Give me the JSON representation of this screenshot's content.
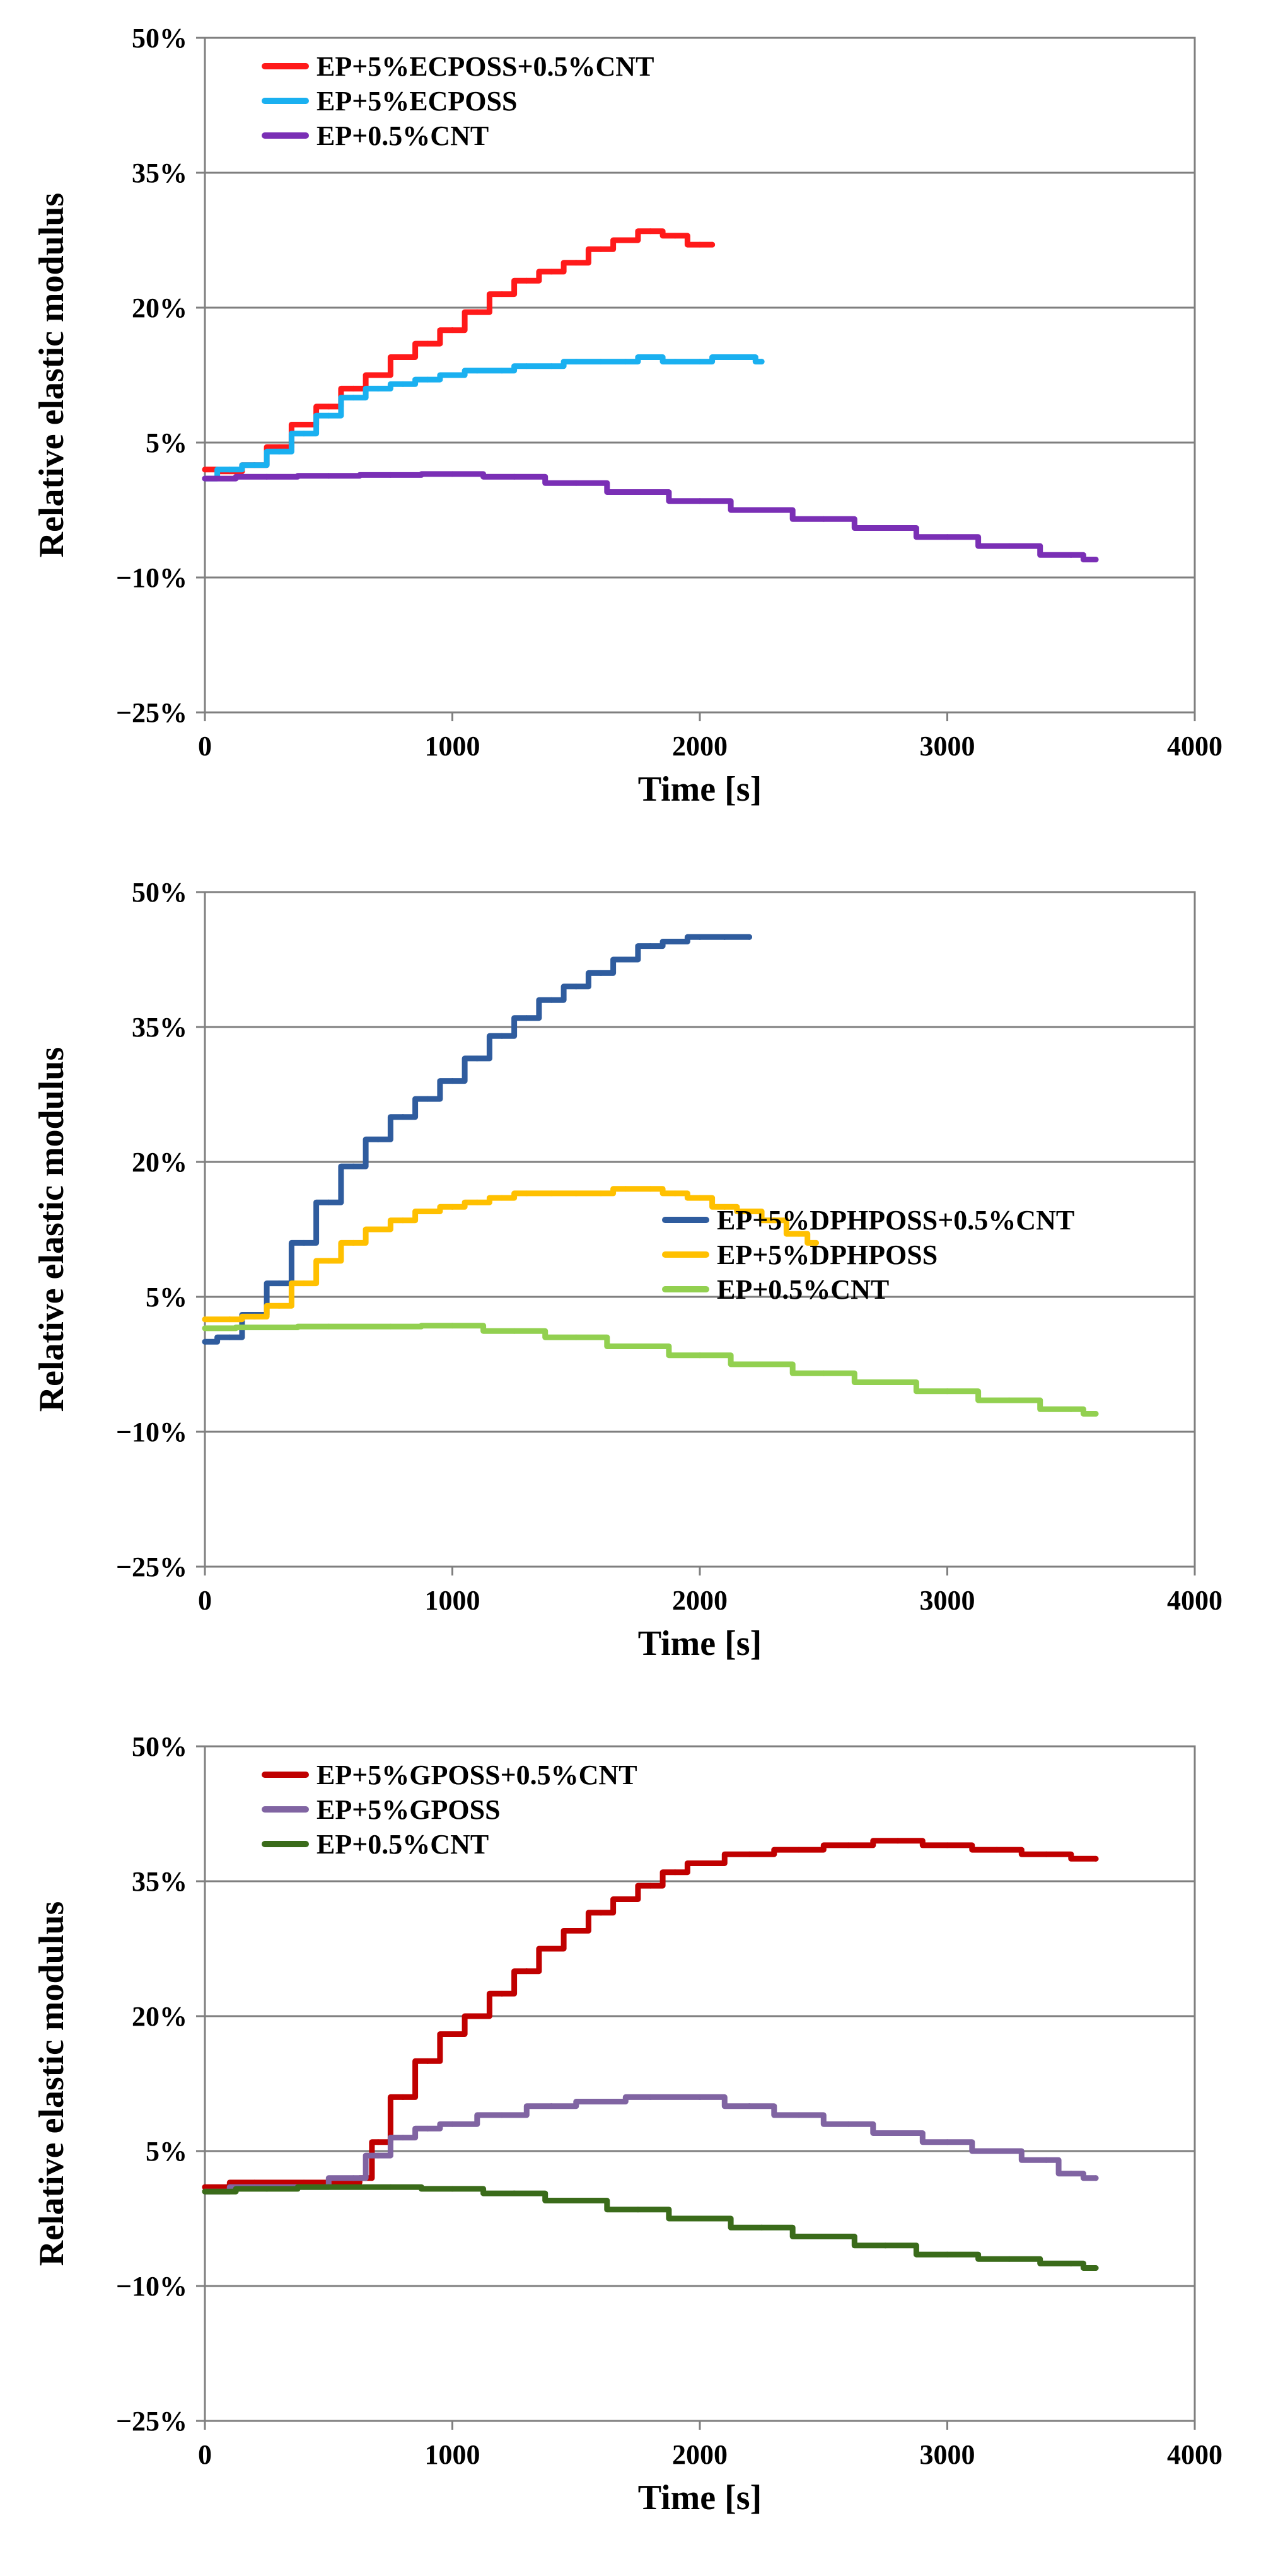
{
  "figure": {
    "panels": 3
  },
  "chart_data": [
    {
      "type": "line",
      "xlabel": "Time [s]",
      "ylabel": "Relative elastic modulus",
      "xlim": [
        0,
        4000
      ],
      "ylim": [
        -25,
        50
      ],
      "x_ticks": [
        0,
        1000,
        2000,
        3000,
        4000
      ],
      "x_tick_labels": [
        "0",
        "1000",
        "2000",
        "3000",
        "4000"
      ],
      "y_ticks": [
        -25,
        -10,
        5,
        20,
        35,
        50
      ],
      "y_tick_labels": [
        "−25%",
        "−10%",
        "5%",
        "20%",
        "35%",
        "50%"
      ],
      "grid": "horizontal",
      "legend_position": "top-left",
      "series": [
        {
          "name": "EP+5%ECPOSS+0.5%CNT",
          "color": "#ff1a1a",
          "x": [
            0,
            100,
            200,
            300,
            400,
            500,
            600,
            700,
            800,
            900,
            1000,
            1100,
            1200,
            1300,
            1400,
            1500,
            1600,
            1700,
            1800,
            1900,
            2000,
            2050
          ],
          "y": [
            2.0,
            1.8,
            2.5,
            4.5,
            7.0,
            9.0,
            11.0,
            12.5,
            14.5,
            16.0,
            17.5,
            19.5,
            21.5,
            23.0,
            24.0,
            25.0,
            26.5,
            27.5,
            28.5,
            28.0,
            27.0,
            27.0
          ]
        },
        {
          "name": "EP+5%ECPOSS",
          "color": "#1ab0f0",
          "x": [
            0,
            100,
            200,
            300,
            400,
            500,
            600,
            700,
            800,
            900,
            1000,
            1100,
            1200,
            1300,
            1400,
            1500,
            1600,
            1700,
            1800,
            1900,
            2000,
            2100,
            2200,
            2250
          ],
          "y": [
            1.0,
            2.0,
            2.5,
            4.0,
            6.0,
            8.0,
            10.0,
            11.0,
            11.5,
            12.0,
            12.5,
            13.0,
            13.0,
            13.5,
            13.5,
            14.0,
            14.0,
            14.0,
            14.5,
            14.0,
            14.0,
            14.5,
            14.5,
            14.0
          ]
        },
        {
          "name": "EP+0.5%CNT",
          "color": "#7a2fb5",
          "x": [
            0,
            250,
            500,
            750,
            1000,
            1250,
            1500,
            1750,
            2000,
            2250,
            2500,
            2750,
            3000,
            3250,
            3500,
            3600
          ],
          "y": [
            1.0,
            1.2,
            1.3,
            1.4,
            1.5,
            1.2,
            0.5,
            -0.5,
            -1.5,
            -2.5,
            -3.5,
            -4.5,
            -5.5,
            -6.5,
            -7.5,
            -8.0
          ]
        }
      ]
    },
    {
      "type": "line",
      "xlabel": "Time [s]",
      "ylabel": "Relative elastic modulus",
      "xlim": [
        0,
        4000
      ],
      "ylim": [
        -25,
        50
      ],
      "x_ticks": [
        0,
        1000,
        2000,
        3000,
        4000
      ],
      "x_tick_labels": [
        "0",
        "1000",
        "2000",
        "3000",
        "4000"
      ],
      "y_ticks": [
        -25,
        -10,
        5,
        20,
        35,
        50
      ],
      "y_tick_labels": [
        "−25%",
        "−10%",
        "5%",
        "20%",
        "35%",
        "50%"
      ],
      "grid": "horizontal",
      "legend_position": "middle-right",
      "series": [
        {
          "name": "EP+5%DPHPOSS+0.5%CNT",
          "color": "#2f5c9e",
          "x": [
            0,
            100,
            200,
            300,
            400,
            500,
            600,
            700,
            800,
            900,
            1000,
            1100,
            1200,
            1300,
            1400,
            1500,
            1600,
            1700,
            1800,
            1900,
            2000,
            2100,
            2200
          ],
          "y": [
            0.0,
            0.5,
            3.0,
            6.5,
            11.0,
            15.5,
            19.5,
            22.5,
            25.0,
            27.0,
            29.0,
            31.5,
            34.0,
            36.0,
            38.0,
            39.5,
            41.0,
            42.5,
            44.0,
            44.5,
            45.0,
            45.0,
            45.0
          ]
        },
        {
          "name": "EP+5%DPHPOSS",
          "color": "#ffc000",
          "x": [
            0,
            100,
            200,
            300,
            400,
            500,
            600,
            700,
            800,
            900,
            1000,
            1100,
            1200,
            1300,
            1400,
            1500,
            1600,
            1700,
            1800,
            1900,
            2000,
            2100,
            2200,
            2300,
            2400,
            2470
          ],
          "y": [
            2.5,
            2.5,
            2.8,
            4.0,
            6.5,
            9.0,
            11.0,
            12.5,
            13.5,
            14.5,
            15.0,
            15.5,
            16.0,
            16.5,
            16.5,
            16.5,
            16.5,
            17.0,
            17.0,
            16.5,
            16.0,
            15.0,
            14.5,
            13.5,
            12.0,
            11.0
          ]
        },
        {
          "name": "EP+0.5%CNT",
          "color": "#92d050",
          "x": [
            0,
            250,
            500,
            750,
            1000,
            1250,
            1500,
            1750,
            2000,
            2250,
            2500,
            2750,
            3000,
            3250,
            3500,
            3600
          ],
          "y": [
            1.5,
            1.6,
            1.7,
            1.7,
            1.8,
            1.2,
            0.5,
            -0.5,
            -1.5,
            -2.5,
            -3.5,
            -4.5,
            -5.5,
            -6.5,
            -7.5,
            -8.0
          ]
        }
      ]
    },
    {
      "type": "line",
      "xlabel": "Time [s]",
      "ylabel": "Relative elastic modulus",
      "xlim": [
        0,
        4000
      ],
      "ylim": [
        -25,
        50
      ],
      "x_ticks": [
        0,
        1000,
        2000,
        3000,
        4000
      ],
      "x_tick_labels": [
        "0",
        "1000",
        "2000",
        "3000",
        "4000"
      ],
      "y_ticks": [
        -25,
        -10,
        5,
        20,
        35,
        50
      ],
      "y_tick_labels": [
        "−25%",
        "−10%",
        "5%",
        "20%",
        "35%",
        "50%"
      ],
      "grid": "horizontal",
      "legend_position": "top-left",
      "series": [
        {
          "name": "EP+5%GPOSS+0.5%CNT",
          "color": "#c00000",
          "x": [
            0,
            200,
            400,
            600,
            650,
            700,
            800,
            900,
            1000,
            1100,
            1200,
            1300,
            1400,
            1500,
            1600,
            1700,
            1800,
            1900,
            2000,
            2200,
            2400,
            2600,
            2800,
            3000,
            3200,
            3400,
            3600
          ],
          "y": [
            1.0,
            1.5,
            1.5,
            1.5,
            2.0,
            6.0,
            11.0,
            15.0,
            18.0,
            20.0,
            22.5,
            25.0,
            27.5,
            29.5,
            31.5,
            33.0,
            34.5,
            36.0,
            37.0,
            38.0,
            38.5,
            39.0,
            39.5,
            39.0,
            38.5,
            38.0,
            37.5
          ]
        },
        {
          "name": "EP+5%GPOSS",
          "color": "#8064a2",
          "x": [
            0,
            200,
            400,
            600,
            700,
            800,
            900,
            1000,
            1200,
            1400,
            1600,
            1800,
            2000,
            2200,
            2400,
            2600,
            2800,
            3000,
            3200,
            3400,
            3500,
            3600
          ],
          "y": [
            0.5,
            1.0,
            1.0,
            2.0,
            4.5,
            6.5,
            7.5,
            8.0,
            9.0,
            10.0,
            10.5,
            11.0,
            11.0,
            10.0,
            9.0,
            8.0,
            7.0,
            6.0,
            5.0,
            4.0,
            2.5,
            2.0
          ]
        },
        {
          "name": "EP+0.5%CNT",
          "color": "#3a6b1a",
          "x": [
            0,
            250,
            500,
            750,
            1000,
            1250,
            1500,
            1750,
            2000,
            2250,
            2500,
            2750,
            3000,
            3250,
            3500,
            3600
          ],
          "y": [
            0.5,
            0.8,
            1.0,
            1.0,
            0.8,
            0.3,
            -0.5,
            -1.5,
            -2.5,
            -3.5,
            -4.5,
            -5.5,
            -6.5,
            -7.0,
            -7.5,
            -8.0
          ]
        }
      ]
    }
  ]
}
